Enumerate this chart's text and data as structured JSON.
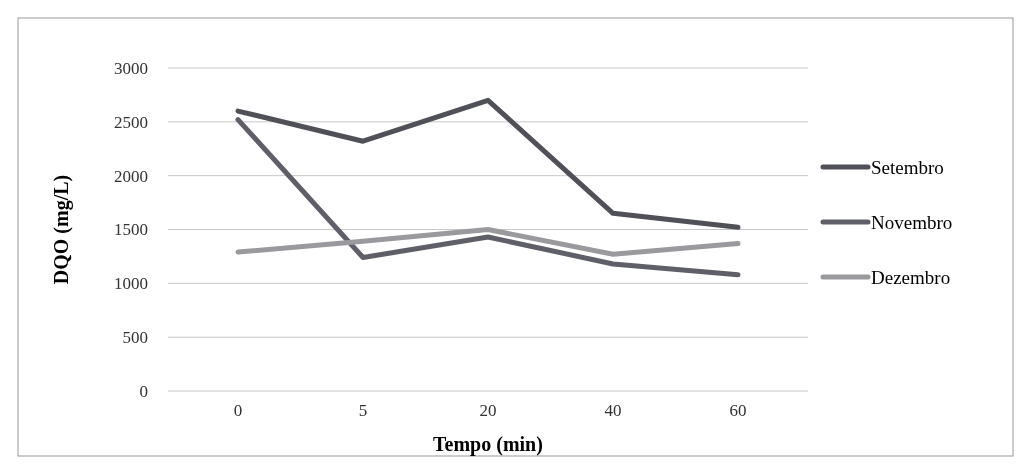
{
  "chart_data": {
    "type": "line",
    "xlabel": "Tempo (min)",
    "ylabel": "DQO (mg/L)",
    "categories": [
      "0",
      "5",
      "20",
      "40",
      "60"
    ],
    "series": [
      {
        "name": "Setembro",
        "color": "#4f5058",
        "values": [
          2600,
          2320,
          2700,
          1650,
          1520
        ]
      },
      {
        "name": "Novembro",
        "color": "#5e5f68",
        "values": [
          2520,
          1240,
          1430,
          1180,
          1080
        ]
      },
      {
        "name": "Dezembro",
        "color": "#9a9a9e",
        "values": [
          1290,
          1390,
          1500,
          1270,
          1370
        ]
      }
    ],
    "ylim": [
      0,
      3000
    ],
    "yticks": [
      0,
      500,
      1000,
      1500,
      2000,
      2500,
      3000
    ],
    "grid": "y",
    "legend": "right",
    "marker": "none",
    "line_style": "solid"
  }
}
